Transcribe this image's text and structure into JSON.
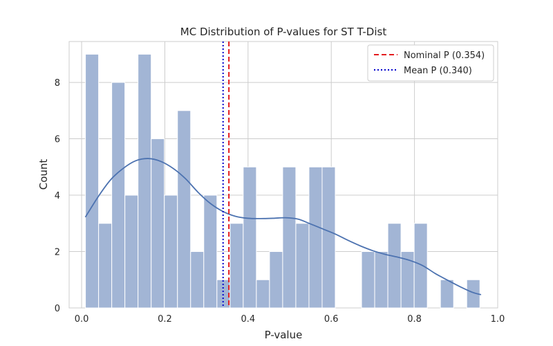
{
  "chart_data": {
    "type": "bar",
    "title": "MC Distribution of P-values for ST T-Dist",
    "xlabel": "P-value",
    "ylabel": "Count",
    "xlim": [
      -0.03,
      1.0
    ],
    "ylim": [
      0,
      9.45
    ],
    "xticks": [
      0.0,
      0.2,
      0.4,
      0.6,
      0.8,
      1.0
    ],
    "xtick_labels": [
      "0.0",
      "0.2",
      "0.4",
      "0.6",
      "0.8",
      "1.0"
    ],
    "yticks": [
      0,
      2,
      4,
      6,
      8
    ],
    "ytick_labels": [
      "0",
      "2",
      "4",
      "6",
      "8"
    ],
    "grid": true,
    "colors": {
      "bars": "#a2b5d5",
      "kde": "#4c72b0",
      "nominal": "#e41a1c",
      "mean": "#0000cc"
    },
    "bins": {
      "start": 0.0092,
      "width": 0.0316,
      "counts": [
        9,
        3,
        8,
        4,
        9,
        6,
        4,
        7,
        2,
        4,
        1,
        3,
        5,
        1,
        2,
        5,
        3,
        5,
        5,
        0,
        0,
        2,
        2,
        3,
        2,
        3,
        0,
        1,
        0,
        1
      ]
    },
    "kde": {
      "x": [
        0.009,
        0.04,
        0.07,
        0.1,
        0.13,
        0.16,
        0.19,
        0.22,
        0.25,
        0.28,
        0.31,
        0.34,
        0.37,
        0.4,
        0.43,
        0.46,
        0.49,
        0.52,
        0.55,
        0.58,
        0.61,
        0.64,
        0.67,
        0.7,
        0.73,
        0.76,
        0.79,
        0.82,
        0.85,
        0.88,
        0.91,
        0.94,
        0.96
      ],
      "y": [
        3.22,
        3.95,
        4.55,
        4.95,
        5.22,
        5.3,
        5.2,
        4.95,
        4.58,
        4.1,
        3.7,
        3.42,
        3.25,
        3.18,
        3.17,
        3.18,
        3.2,
        3.15,
        2.98,
        2.8,
        2.62,
        2.4,
        2.2,
        2.03,
        1.9,
        1.8,
        1.68,
        1.5,
        1.22,
        0.98,
        0.75,
        0.55,
        0.47
      ]
    },
    "reference_lines": [
      {
        "name": "Nominal P (0.354)",
        "x": 0.354,
        "style": "dashed",
        "color": "#e41a1c"
      },
      {
        "name": "Mean P (0.340)",
        "x": 0.34,
        "style": "dotted",
        "color": "#0000cc"
      }
    ],
    "legend": {
      "placement": "top-right"
    }
  }
}
